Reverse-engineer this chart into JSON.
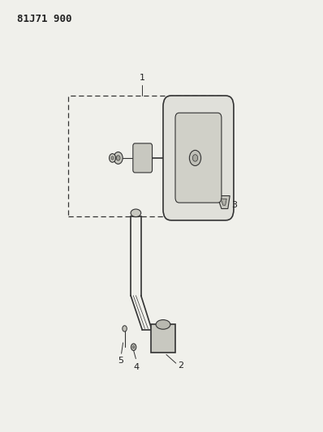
{
  "title": "81J71 900",
  "background_color": "#f0f0eb",
  "line_color": "#333333",
  "label_color": "#222222",
  "fig_width": 3.98,
  "fig_height": 5.33,
  "dpi": 100,
  "title_fontsize": 9,
  "label_fontsize": 8
}
